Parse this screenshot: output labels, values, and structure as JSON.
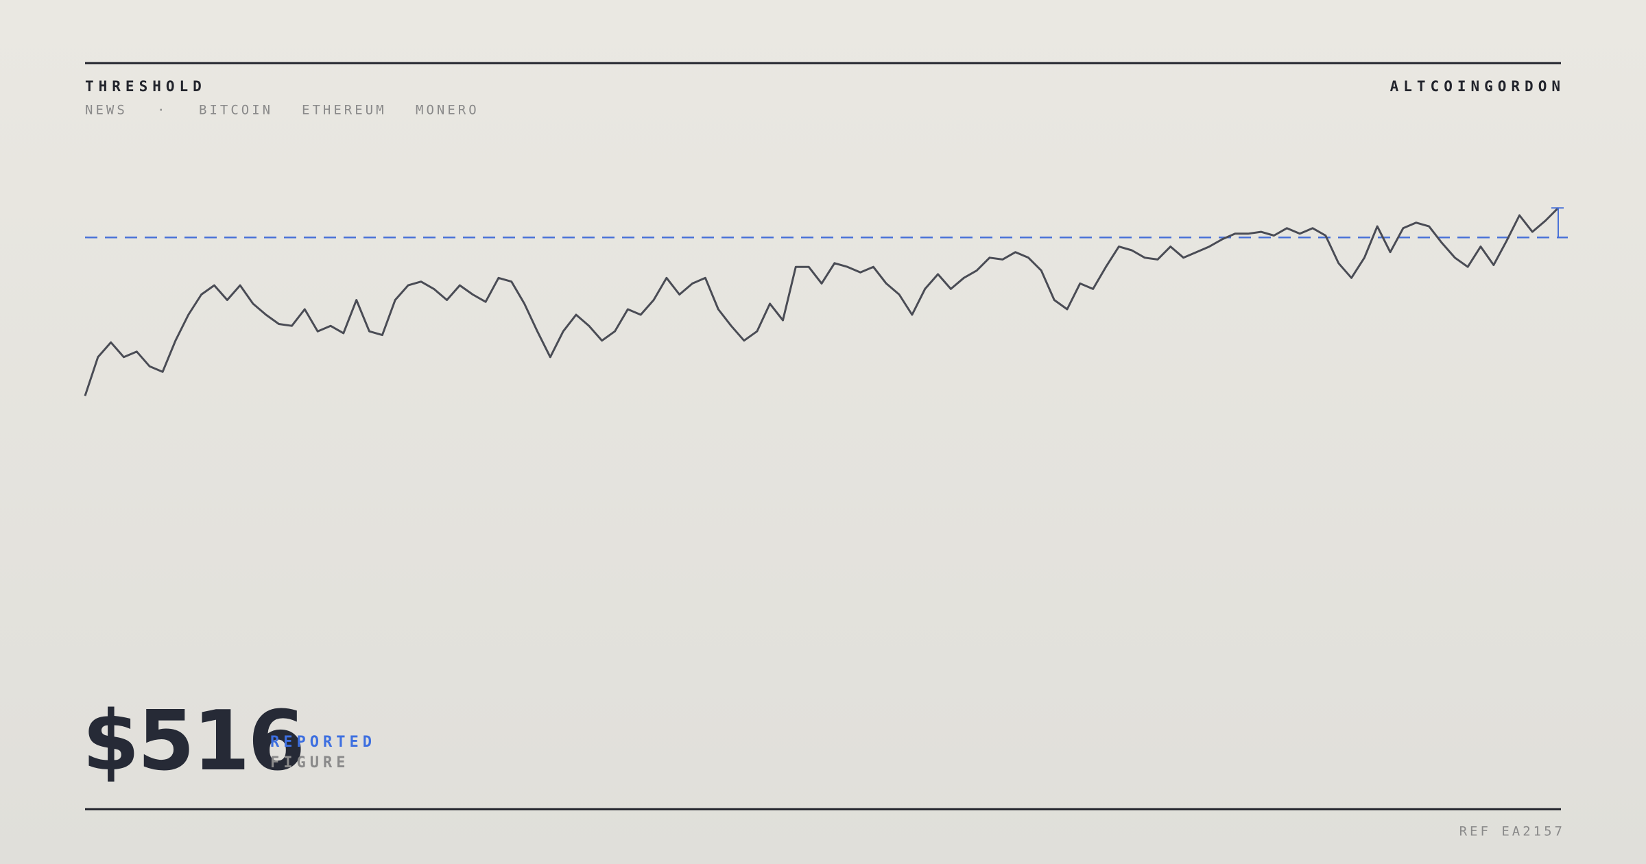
{
  "header": {
    "title": "THRESHOLD",
    "nav": [
      "NEWS",
      "·",
      "BITCOIN",
      "ETHEREUM",
      "MONERO"
    ],
    "brand": "ALTCOINGORDON"
  },
  "chart_data": {
    "type": "line",
    "color": "#4a4c55",
    "threshold": 500,
    "threshold_color": "#4a72d8",
    "ylim": [
      260,
      560
    ],
    "values": [
      414,
      435,
      443,
      435,
      438,
      430,
      427,
      444,
      458,
      469,
      474,
      466,
      474,
      464,
      458,
      453,
      452,
      461,
      449,
      452,
      448,
      466,
      449,
      447,
      466,
      474,
      476,
      472,
      466,
      474,
      469,
      465,
      478,
      476,
      464,
      449,
      435,
      449,
      458,
      452,
      444,
      449,
      461,
      458,
      466,
      478,
      469,
      475,
      478,
      461,
      452,
      444,
      449,
      464,
      455,
      484,
      484,
      475,
      486,
      484,
      481,
      484,
      475,
      469,
      458,
      472,
      480,
      472,
      478,
      482,
      489,
      488,
      492,
      489,
      482,
      466,
      461,
      475,
      472,
      484,
      495,
      493,
      489,
      488,
      495,
      489,
      492,
      495,
      499,
      502,
      502,
      503,
      501,
      505,
      502,
      505,
      501,
      486,
      478,
      489,
      506,
      492,
      505,
      508,
      506,
      497,
      489,
      484,
      495,
      485,
      498,
      512,
      503,
      509,
      516
    ]
  },
  "figure": {
    "value": "$516",
    "tag": "REPORTED",
    "caption": "FIGURE"
  },
  "footer": {
    "ref": "REF EA2157"
  }
}
